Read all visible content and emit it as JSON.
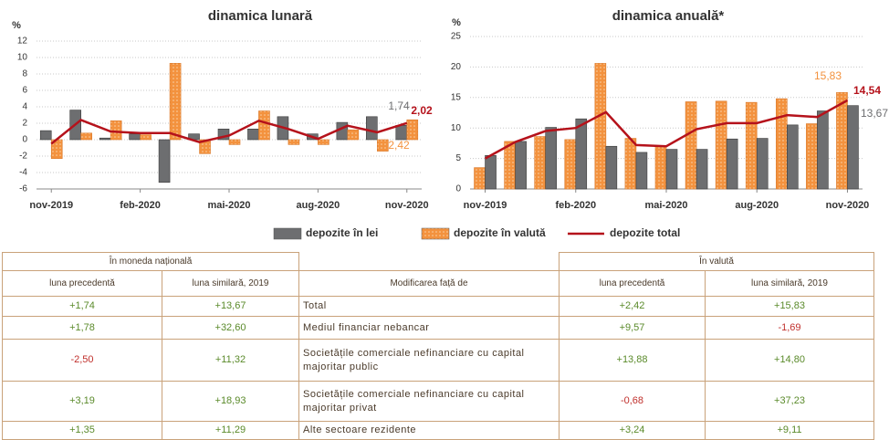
{
  "chart_data": [
    {
      "type": "bar",
      "title": "dinamica lunară",
      "ylabel": "%",
      "categories": [
        "nov-2019",
        null,
        null,
        "feb-2020",
        null,
        null,
        "mai-2020",
        null,
        null,
        "aug-2020",
        null,
        null,
        "nov-2020"
      ],
      "ylim": [
        -6,
        12
      ],
      "yticks": [
        -6,
        -4,
        -2,
        0,
        2,
        4,
        6,
        8,
        10,
        12
      ],
      "grid": true,
      "series": [
        {
          "name": "depozite în lei",
          "type": "bar",
          "color": "#6d6e70",
          "values": [
            1.1,
            3.6,
            0.2,
            0.7,
            -5.2,
            0.7,
            1.3,
            1.3,
            2.8,
            0.7,
            2.1,
            2.8,
            1.74
          ],
          "value_labels": [
            null,
            null,
            null,
            null,
            null,
            null,
            null,
            null,
            null,
            null,
            null,
            null,
            "1,74"
          ]
        },
        {
          "name": "depozite în valută",
          "type": "bar",
          "color": "#f3923e",
          "values": [
            -2.3,
            0.8,
            2.3,
            0.6,
            9.3,
            -1.7,
            -0.6,
            3.5,
            -0.6,
            -0.6,
            1.2,
            -1.4,
            2.42
          ],
          "value_labels": [
            null,
            null,
            null,
            null,
            null,
            null,
            null,
            null,
            null,
            null,
            null,
            null,
            "2,42"
          ]
        },
        {
          "name": "depozite total",
          "type": "line",
          "color": "#b5121b",
          "values": [
            -0.5,
            2.4,
            1.0,
            0.8,
            0.8,
            -0.3,
            0.5,
            2.3,
            1.3,
            0.1,
            1.7,
            0.9,
            2.02
          ],
          "value_labels": [
            null,
            null,
            null,
            null,
            null,
            null,
            null,
            null,
            null,
            null,
            null,
            null,
            "2,02"
          ]
        }
      ]
    },
    {
      "type": "bar",
      "title": "dinamica anuală*",
      "ylabel": "%",
      "categories": [
        "nov-2019",
        null,
        null,
        "feb-2020",
        null,
        null,
        "mai-2020",
        null,
        null,
        "aug-2020",
        null,
        null,
        "nov-2020"
      ],
      "ylim": [
        0,
        25
      ],
      "yticks": [
        0,
        5,
        10,
        15,
        20,
        25
      ],
      "grid": true,
      "series": [
        {
          "type": "bar",
          "color": "#f3923e",
          "values": [
            3.5,
            7.8,
            8.6,
            8.1,
            20.6,
            8.3,
            7.0,
            14.3,
            14.4,
            14.2,
            14.8,
            10.7,
            15.83
          ],
          "value_labels": [
            null,
            null,
            null,
            null,
            null,
            null,
            null,
            null,
            null,
            null,
            null,
            null,
            "15,83"
          ]
        },
        {
          "type": "bar",
          "color": "#6d6e70",
          "values": [
            5.5,
            7.8,
            10.1,
            11.5,
            7.0,
            6.0,
            6.5,
            6.5,
            8.2,
            8.3,
            10.5,
            12.8,
            13.67
          ],
          "value_labels": [
            null,
            null,
            null,
            null,
            null,
            null,
            null,
            null,
            null,
            null,
            null,
            null,
            "13,67"
          ]
        },
        {
          "type": "line",
          "color": "#b5121b",
          "values": [
            5.0,
            7.7,
            9.5,
            10.0,
            12.6,
            7.2,
            7.0,
            9.8,
            10.8,
            10.8,
            12.1,
            11.8,
            14.54
          ],
          "value_labels": [
            null,
            null,
            null,
            null,
            null,
            null,
            null,
            null,
            null,
            null,
            null,
            null,
            "14,54"
          ]
        }
      ]
    }
  ],
  "table": {
    "groups": [
      "În moneda națională",
      "În valută"
    ],
    "columns": [
      "luna precedentă",
      "luna similară, 2019",
      "Modificarea față de",
      "luna precedentă",
      "luna similară, 2019"
    ],
    "rows": [
      [
        "+1,74",
        "+13,67",
        "Total",
        "+2,42",
        "+15,83"
      ],
      [
        "+1,78",
        "+32,60",
        "Mediul financiar nebancar",
        "+9,57",
        "-1,69"
      ],
      [
        "-2,50",
        "+11,32",
        "Societățile comerciale nefinanciare cu capital majoritar public",
        "+13,88",
        "+14,80"
      ],
      [
        "+3,19",
        "+18,93",
        "Societățile comerciale nefinanciare cu capital majoritar privat",
        "-0,68",
        "+37,23"
      ],
      [
        "+1,35",
        "+11,29",
        "Alte sectoare rezidente",
        "+3,24",
        "+9,11"
      ]
    ]
  }
}
